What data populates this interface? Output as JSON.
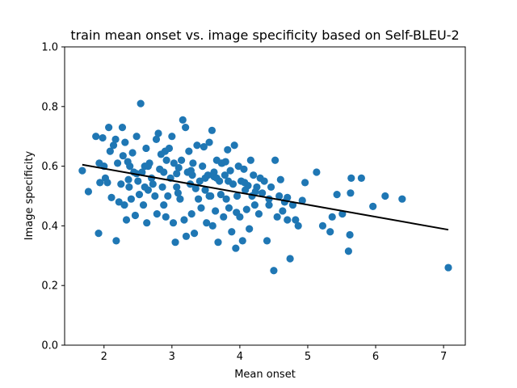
{
  "chart_data": {
    "type": "scatter",
    "title": "train mean onset vs. image specificity based on Self-BLEU-2",
    "xlabel": "Mean onset",
    "ylabel": "Image specificity",
    "xlim": [
      1.42,
      7.32
    ],
    "ylim": [
      0.0,
      1.0
    ],
    "xticks": [
      "2",
      "3",
      "4",
      "5",
      "6",
      "7"
    ],
    "yticks": [
      "0.0",
      "0.2",
      "0.4",
      "0.6",
      "0.8",
      "1.0"
    ],
    "grid": false,
    "colors": {
      "points": "#1f77b4",
      "trendline": "#000000"
    },
    "trendline": {
      "x": [
        1.68,
        7.07
      ],
      "y": [
        0.605,
        0.387
      ]
    },
    "points": [
      [
        1.68,
        0.585
      ],
      [
        1.77,
        0.515
      ],
      [
        1.88,
        0.7
      ],
      [
        1.92,
        0.375
      ],
      [
        1.93,
        0.61
      ],
      [
        1.94,
        0.545
      ],
      [
        1.98,
        0.695
      ],
      [
        2.0,
        0.6
      ],
      [
        2.02,
        0.56
      ],
      [
        2.05,
        0.545
      ],
      [
        2.07,
        0.73
      ],
      [
        2.09,
        0.65
      ],
      [
        2.11,
        0.495
      ],
      [
        2.14,
        0.67
      ],
      [
        2.17,
        0.69
      ],
      [
        2.18,
        0.35
      ],
      [
        2.2,
        0.61
      ],
      [
        2.22,
        0.48
      ],
      [
        2.25,
        0.54
      ],
      [
        2.27,
        0.73
      ],
      [
        2.28,
        0.635
      ],
      [
        2.3,
        0.47
      ],
      [
        2.31,
        0.68
      ],
      [
        2.33,
        0.42
      ],
      [
        2.35,
        0.615
      ],
      [
        2.37,
        0.53
      ],
      [
        2.38,
        0.6
      ],
      [
        2.4,
        0.49
      ],
      [
        2.42,
        0.645
      ],
      [
        2.44,
        0.58
      ],
      [
        2.46,
        0.435
      ],
      [
        2.48,
        0.7
      ],
      [
        2.5,
        0.55
      ],
      [
        2.52,
        0.505
      ],
      [
        2.54,
        0.81
      ],
      [
        2.56,
        0.58
      ],
      [
        2.58,
        0.47
      ],
      [
        2.6,
        0.6
      ],
      [
        2.62,
        0.66
      ],
      [
        2.63,
        0.41
      ],
      [
        2.65,
        0.52
      ],
      [
        2.67,
        0.61
      ],
      [
        2.7,
        0.56
      ],
      [
        2.72,
        0.54
      ],
      [
        2.75,
        0.5
      ],
      [
        2.77,
        0.69
      ],
      [
        2.78,
        0.44
      ],
      [
        2.8,
        0.71
      ],
      [
        2.82,
        0.59
      ],
      [
        2.84,
        0.64
      ],
      [
        2.86,
        0.53
      ],
      [
        2.88,
        0.47
      ],
      [
        2.9,
        0.65
      ],
      [
        2.91,
        0.43
      ],
      [
        2.92,
        0.62
      ],
      [
        2.94,
        0.5
      ],
      [
        2.96,
        0.66
      ],
      [
        2.98,
        0.56
      ],
      [
        3.0,
        0.7
      ],
      [
        3.02,
        0.41
      ],
      [
        3.03,
        0.61
      ],
      [
        3.05,
        0.345
      ],
      [
        3.07,
        0.53
      ],
      [
        3.09,
        0.51
      ],
      [
        3.1,
        0.595
      ],
      [
        3.12,
        0.49
      ],
      [
        3.14,
        0.62
      ],
      [
        3.16,
        0.755
      ],
      [
        3.18,
        0.42
      ],
      [
        3.2,
        0.73
      ],
      [
        3.21,
        0.365
      ],
      [
        3.23,
        0.58
      ],
      [
        3.25,
        0.65
      ],
      [
        3.27,
        0.54
      ],
      [
        3.29,
        0.44
      ],
      [
        3.31,
        0.61
      ],
      [
        3.33,
        0.375
      ],
      [
        3.35,
        0.525
      ],
      [
        3.37,
        0.67
      ],
      [
        3.39,
        0.49
      ],
      [
        3.41,
        0.55
      ],
      [
        3.43,
        0.46
      ],
      [
        3.45,
        0.6
      ],
      [
        3.47,
        0.665
      ],
      [
        3.49,
        0.52
      ],
      [
        3.51,
        0.41
      ],
      [
        3.53,
        0.57
      ],
      [
        3.55,
        0.68
      ],
      [
        3.57,
        0.5
      ],
      [
        3.59,
        0.72
      ],
      [
        3.6,
        0.4
      ],
      [
        3.62,
        0.58
      ],
      [
        3.64,
        0.45
      ],
      [
        3.66,
        0.62
      ],
      [
        3.68,
        0.345
      ],
      [
        3.7,
        0.55
      ],
      [
        3.72,
        0.505
      ],
      [
        3.74,
        0.61
      ],
      [
        3.76,
        0.43
      ],
      [
        3.78,
        0.57
      ],
      [
        3.8,
        0.49
      ],
      [
        3.82,
        0.655
      ],
      [
        3.84,
        0.46
      ],
      [
        3.86,
        0.585
      ],
      [
        3.88,
        0.38
      ],
      [
        3.9,
        0.54
      ],
      [
        3.92,
        0.67
      ],
      [
        3.94,
        0.325
      ],
      [
        3.96,
        0.5
      ],
      [
        3.98,
        0.6
      ],
      [
        4.0,
        0.43
      ],
      [
        4.02,
        0.55
      ],
      [
        4.04,
        0.35
      ],
      [
        4.06,
        0.59
      ],
      [
        4.08,
        0.52
      ],
      [
        4.1,
        0.455
      ],
      [
        4.12,
        0.535
      ],
      [
        4.14,
        0.39
      ],
      [
        4.16,
        0.62
      ],
      [
        4.18,
        0.5
      ],
      [
        4.2,
        0.57
      ],
      [
        4.22,
        0.47
      ],
      [
        4.25,
        0.53
      ],
      [
        4.28,
        0.44
      ],
      [
        4.3,
        0.56
      ],
      [
        4.33,
        0.51
      ],
      [
        4.36,
        0.55
      ],
      [
        4.4,
        0.35
      ],
      [
        4.43,
        0.49
      ],
      [
        4.46,
        0.53
      ],
      [
        4.5,
        0.25
      ],
      [
        4.52,
        0.62
      ],
      [
        4.55,
        0.43
      ],
      [
        4.58,
        0.5
      ],
      [
        4.6,
        0.555
      ],
      [
        4.63,
        0.45
      ],
      [
        4.66,
        0.48
      ],
      [
        4.7,
        0.42
      ],
      [
        4.74,
        0.29
      ],
      [
        4.78,
        0.47
      ],
      [
        4.82,
        0.42
      ],
      [
        4.86,
        0.4
      ],
      [
        4.92,
        0.485
      ],
      [
        4.96,
        0.545
      ],
      [
        5.13,
        0.58
      ],
      [
        5.22,
        0.4
      ],
      [
        5.33,
        0.38
      ],
      [
        5.36,
        0.43
      ],
      [
        5.43,
        0.505
      ],
      [
        5.51,
        0.44
      ],
      [
        5.6,
        0.315
      ],
      [
        5.62,
        0.37
      ],
      [
        5.63,
        0.51
      ],
      [
        5.64,
        0.56
      ],
      [
        5.79,
        0.56
      ],
      [
        5.96,
        0.465
      ],
      [
        6.14,
        0.5
      ],
      [
        6.39,
        0.49
      ],
      [
        7.07,
        0.26
      ],
      [
        2.88,
        0.58
      ],
      [
        3.07,
        0.575
      ],
      [
        3.3,
        0.57
      ],
      [
        3.49,
        0.56
      ],
      [
        3.62,
        0.565
      ],
      [
        3.66,
        0.56
      ],
      [
        3.73,
        0.61
      ],
      [
        3.79,
        0.615
      ],
      [
        3.83,
        0.55
      ],
      [
        4.07,
        0.545
      ],
      [
        4.23,
        0.515
      ],
      [
        4.43,
        0.47
      ],
      [
        4.7,
        0.495
      ],
      [
        3.28,
        0.585
      ],
      [
        3.55,
        0.5
      ],
      [
        3.95,
        0.445
      ],
      [
        2.65,
        0.6
      ],
      [
        2.48,
        0.575
      ],
      [
        2.36,
        0.555
      ],
      [
        2.6,
        0.53
      ]
    ]
  }
}
